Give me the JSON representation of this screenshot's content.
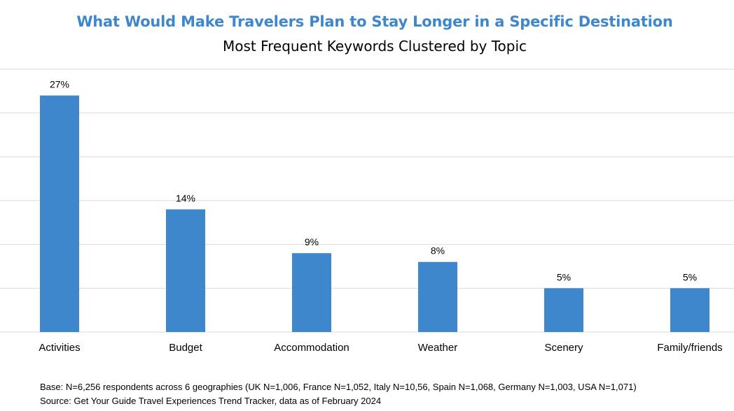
{
  "chart_data": {
    "type": "bar",
    "title": "What Would Make Travelers Plan to Stay Longer in a Specific Destination",
    "subtitle": "Most Frequent Keywords Clustered by Topic",
    "categories": [
      "Activities",
      "Budget",
      "Accommodation",
      "Weather",
      "Scenery",
      "Family/friends"
    ],
    "values": [
      27,
      14,
      9,
      8,
      5,
      5
    ],
    "value_labels": [
      "27%",
      "14%",
      "9%",
      "8%",
      "5%",
      "5%"
    ],
    "xlabel": "",
    "ylabel": "",
    "ylim": [
      0,
      30
    ],
    "grid": true,
    "legend": "none",
    "bar_color": "#3f87cc",
    "title_color": "#3f87cc"
  },
  "footnotes": {
    "base": "Base: N=6,256 respondents across 6 geographies (UK N=1,006, France N=1,052, Italy N=10,56, Spain N=1,068, Germany N=1,003, USA N=1,071)",
    "source": "Source: Get Your Guide Travel Experiences Trend Tracker, data as of February 2024"
  }
}
